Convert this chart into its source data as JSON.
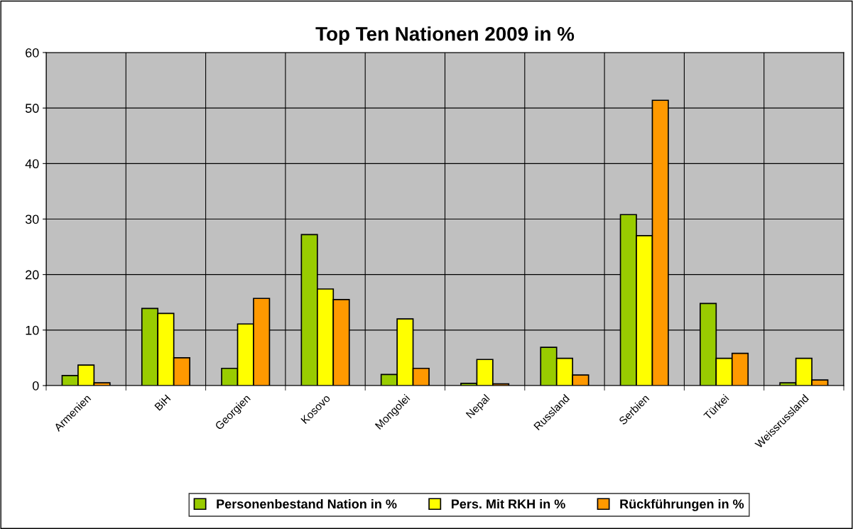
{
  "chart_data": {
    "type": "bar",
    "title": "Top Ten Nationen 2009 in %",
    "categories": [
      "Armenien",
      "BiH",
      "Georgien",
      "Kosovo",
      "Mongolei",
      "Nepal",
      "Russland",
      "Serbien",
      "Türkei",
      "Weissrussland"
    ],
    "series": [
      {
        "name": "Personenbestand Nation in %",
        "color": "#99cc00",
        "values": [
          1.8,
          13.9,
          3.1,
          27.2,
          2.0,
          0.4,
          6.9,
          30.8,
          14.8,
          0.5
        ]
      },
      {
        "name": "Pers. Mit RKH in %",
        "color": "#ffff00",
        "values": [
          3.7,
          13.0,
          11.1,
          17.4,
          12.0,
          4.7,
          4.9,
          27.0,
          4.9,
          4.9
        ]
      },
      {
        "name": "Rückführungen in %",
        "color": "#ff9900",
        "values": [
          0.5,
          5.0,
          15.7,
          15.5,
          3.1,
          0.3,
          1.9,
          51.4,
          5.8,
          1.0
        ]
      }
    ],
    "ylim": [
      0,
      60
    ],
    "yticks": [
      0,
      10,
      20,
      30,
      40,
      50,
      60
    ],
    "grid": true,
    "legend": "bottom"
  }
}
